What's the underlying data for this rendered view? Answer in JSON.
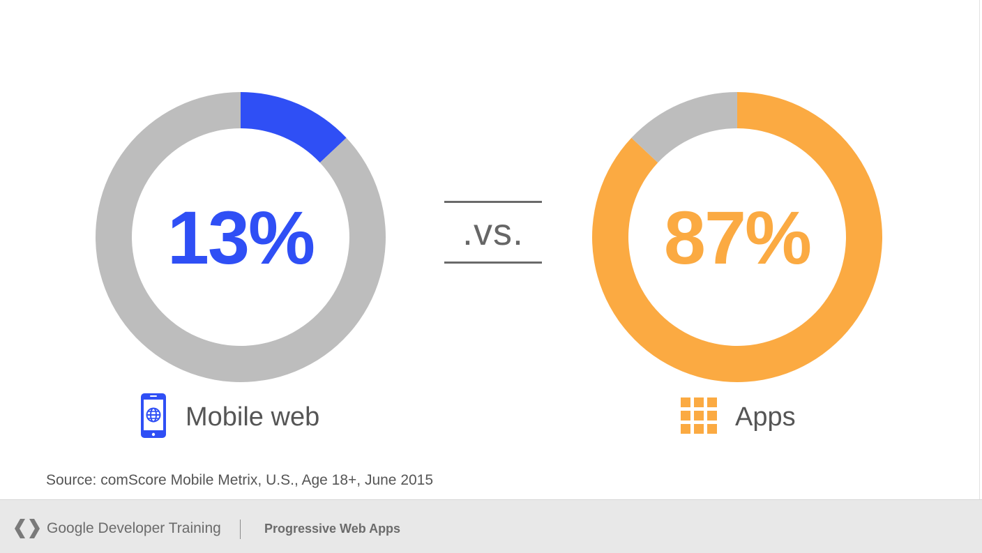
{
  "chart_data": [
    {
      "type": "donut",
      "name": "Mobile web",
      "value_label": "13%",
      "values": [
        13,
        87
      ],
      "colors": [
        "#2f4ff5",
        "#bdbdbd"
      ],
      "label": "Mobile web",
      "icon": "mobile-phone-globe-icon"
    },
    {
      "type": "donut",
      "name": "Apps",
      "value_label": "87%",
      "values": [
        87,
        13
      ],
      "colors": [
        "#fbaa42",
        "#bdbdbd"
      ],
      "label": "Apps",
      "icon": "apps-grid-icon"
    }
  ],
  "vs_text": ".vs.",
  "source": "Source: comScore Mobile Metrix, U.S., Age 18+, June 2015",
  "footer": {
    "brand": "Google Developer Training",
    "course": "Progressive Web Apps",
    "logo_icon": "google-developers-chevron-icon"
  },
  "colors": {
    "web": "#2f4ff5",
    "apps": "#fbaa42",
    "track": "#bdbdbd",
    "text": "#555555"
  }
}
